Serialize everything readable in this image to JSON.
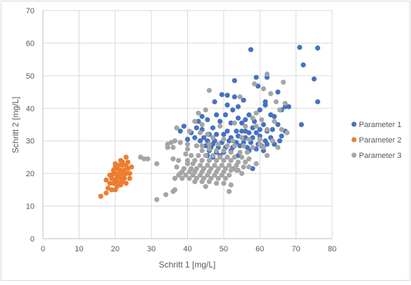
{
  "chart_data": {
    "type": "scatter",
    "xlabel": "Schritt 1 [mg/L]",
    "ylabel": "Schritt 2 [mg/L]",
    "xlim": [
      0,
      80
    ],
    "ylim": [
      0,
      70
    ],
    "xticks": [
      0,
      10,
      20,
      30,
      40,
      50,
      60,
      70,
      80
    ],
    "yticks": [
      0,
      10,
      20,
      30,
      40,
      50,
      60,
      70
    ],
    "grid": true,
    "legend_position": "right",
    "series": [
      {
        "name": "Parameter 1",
        "color": "#4472C4",
        "points": [
          [
            71,
            58.7
          ],
          [
            76,
            58.5
          ],
          [
            57.5,
            58
          ],
          [
            72,
            53.3
          ],
          [
            75,
            49
          ],
          [
            59,
            49.5
          ],
          [
            62,
            49.5
          ],
          [
            53,
            48.5
          ],
          [
            49.5,
            44.2
          ],
          [
            51,
            44
          ],
          [
            55.5,
            42.5
          ],
          [
            76,
            42
          ],
          [
            59.5,
            46.8
          ],
          [
            61.5,
            42
          ],
          [
            65,
            45
          ],
          [
            67,
            40.5
          ],
          [
            68,
            40.5
          ],
          [
            47.5,
            42
          ],
          [
            54,
            40.5
          ],
          [
            63,
            38
          ],
          [
            57,
            38
          ],
          [
            44,
            37.5
          ],
          [
            48,
            38
          ],
          [
            50.5,
            38
          ],
          [
            52.5,
            39.5
          ],
          [
            60,
            39.5
          ],
          [
            66,
            39.5
          ],
          [
            61.5,
            41
          ],
          [
            45.5,
            36.5
          ],
          [
            49,
            36
          ],
          [
            52,
            35.5
          ],
          [
            55,
            35.5
          ],
          [
            58,
            34
          ],
          [
            61,
            35
          ],
          [
            64,
            37.5
          ],
          [
            71.5,
            35
          ],
          [
            39,
            34.5
          ],
          [
            42.5,
            34
          ],
          [
            44,
            33.5
          ],
          [
            47,
            34
          ],
          [
            51,
            33
          ],
          [
            53.5,
            33
          ],
          [
            55,
            33
          ],
          [
            57,
            32.5
          ],
          [
            59,
            32.5
          ],
          [
            62,
            33
          ],
          [
            65,
            35
          ],
          [
            67,
            33
          ],
          [
            38,
            33
          ],
          [
            41,
            32.5
          ],
          [
            44.5,
            31
          ],
          [
            46,
            32
          ],
          [
            48,
            32
          ],
          [
            50,
            32
          ],
          [
            52,
            31
          ],
          [
            54,
            31.5
          ],
          [
            56,
            31
          ],
          [
            58,
            31
          ],
          [
            60,
            31.5
          ],
          [
            61.5,
            30
          ],
          [
            63,
            31
          ],
          [
            40,
            30.5
          ],
          [
            42,
            31
          ],
          [
            43.5,
            30
          ],
          [
            45.5,
            30
          ],
          [
            47.5,
            30
          ],
          [
            49.5,
            29.5
          ],
          [
            51.5,
            30
          ],
          [
            53.5,
            29.5
          ],
          [
            55.5,
            29.5
          ],
          [
            57.5,
            29.5
          ],
          [
            59.5,
            29
          ],
          [
            60.5,
            28.5
          ],
          [
            62,
            29
          ],
          [
            64,
            29
          ],
          [
            45,
            28.5
          ],
          [
            46.5,
            28
          ],
          [
            48.5,
            28
          ],
          [
            50.5,
            28
          ],
          [
            52.5,
            28
          ],
          [
            54.5,
            28.5
          ],
          [
            56.5,
            28
          ],
          [
            46,
            27
          ],
          [
            48,
            26.5
          ],
          [
            50,
            26.5
          ],
          [
            52,
            27
          ],
          [
            57,
            27
          ],
          [
            59,
            27.5
          ],
          [
            61,
            27
          ],
          [
            45.5,
            25.5
          ],
          [
            47,
            25
          ],
          [
            49,
            25.5
          ],
          [
            54,
            25.5
          ],
          [
            58,
            21.5
          ],
          [
            65.5,
            30
          ],
          [
            66,
            31.5
          ],
          [
            60,
            33.5
          ],
          [
            43,
            36
          ],
          [
            47,
            29
          ],
          [
            56,
            36.5
          ],
          [
            58.5,
            36
          ],
          [
            54,
            37
          ],
          [
            51,
            41
          ],
          [
            53,
            43.5
          ],
          [
            63.5,
            33.5
          ],
          [
            56,
            33
          ]
        ]
      },
      {
        "name": "Parameter 2",
        "color": "#ED7D31",
        "points": [
          [
            16,
            13
          ],
          [
            17.5,
            14
          ],
          [
            18,
            15.5
          ],
          [
            19,
            15
          ],
          [
            20,
            15
          ],
          [
            20.5,
            16
          ],
          [
            18.5,
            17
          ],
          [
            19.5,
            17
          ],
          [
            20,
            18
          ],
          [
            21,
            17
          ],
          [
            22,
            17.5
          ],
          [
            23,
            17
          ],
          [
            19,
            18.5
          ],
          [
            20.5,
            19
          ],
          [
            21.5,
            18.5
          ],
          [
            22.5,
            18.5
          ],
          [
            17.5,
            18
          ],
          [
            18.5,
            19.5
          ],
          [
            20,
            20
          ],
          [
            21,
            20
          ],
          [
            22,
            20
          ],
          [
            23,
            20
          ],
          [
            24,
            20
          ],
          [
            19.5,
            21
          ],
          [
            20.5,
            21.5
          ],
          [
            21.5,
            21
          ],
          [
            22.5,
            21
          ],
          [
            23.5,
            21.5
          ],
          [
            20,
            22
          ],
          [
            21,
            22.5
          ],
          [
            22,
            22.5
          ],
          [
            23,
            22.5
          ],
          [
            24.5,
            22
          ],
          [
            20,
            23
          ],
          [
            22,
            23.5
          ],
          [
            23,
            25
          ],
          [
            21.5,
            24
          ],
          [
            19,
            19.5
          ],
          [
            20.5,
            17.5
          ],
          [
            21.5,
            16.5
          ],
          [
            22.5,
            19.5
          ],
          [
            24,
            18.5
          ],
          [
            19.5,
            20
          ],
          [
            21,
            19.5
          ],
          [
            23.5,
            23.5
          ]
        ]
      },
      {
        "name": "Parameter 3",
        "color": "#A5A5A5",
        "points": [
          [
            62,
            50.5
          ],
          [
            58.5,
            47.5
          ],
          [
            61,
            46
          ],
          [
            66.5,
            48
          ],
          [
            63,
            44.5
          ],
          [
            46,
            45.5
          ],
          [
            54.5,
            43.5
          ],
          [
            64.5,
            42
          ],
          [
            67,
            41.5
          ],
          [
            43,
            38.5
          ],
          [
            45,
            39.5
          ],
          [
            59,
            38.5
          ],
          [
            65.5,
            39.5
          ],
          [
            58,
            37
          ],
          [
            60.5,
            36.5
          ],
          [
            64,
            36
          ],
          [
            42,
            36
          ],
          [
            44,
            35
          ],
          [
            49,
            34.5
          ],
          [
            53,
            35.5
          ],
          [
            56,
            34.5
          ],
          [
            59,
            34.5
          ],
          [
            62,
            33.5
          ],
          [
            66,
            33.5
          ],
          [
            37,
            34
          ],
          [
            40.5,
            33
          ],
          [
            43.5,
            32.5
          ],
          [
            45.5,
            32
          ],
          [
            47,
            31
          ],
          [
            50,
            30.5
          ],
          [
            52.5,
            30
          ],
          [
            55,
            31
          ],
          [
            57,
            30.5
          ],
          [
            60,
            30.5
          ],
          [
            63.5,
            30
          ],
          [
            67.5,
            32.5
          ],
          [
            34.5,
            29
          ],
          [
            35.5,
            29.5
          ],
          [
            36.5,
            30
          ],
          [
            38,
            29.5
          ],
          [
            40,
            29
          ],
          [
            42.5,
            28.5
          ],
          [
            44,
            28.5
          ],
          [
            46,
            29
          ],
          [
            48.5,
            29
          ],
          [
            51,
            28.5
          ],
          [
            53,
            28.5
          ],
          [
            55.5,
            28.5
          ],
          [
            58,
            28
          ],
          [
            61,
            28
          ],
          [
            34.5,
            28
          ],
          [
            36,
            28
          ],
          [
            40,
            27.5
          ],
          [
            44,
            27
          ],
          [
            46,
            27.5
          ],
          [
            48,
            27
          ],
          [
            50,
            27
          ],
          [
            52,
            26.5
          ],
          [
            54.5,
            26.5
          ],
          [
            56.5,
            26.5
          ],
          [
            39.5,
            26
          ],
          [
            41,
            25.5
          ],
          [
            43,
            25.5
          ],
          [
            45,
            25.5
          ],
          [
            47,
            25.5
          ],
          [
            49,
            25
          ],
          [
            51,
            25
          ],
          [
            53,
            25
          ],
          [
            55,
            25
          ],
          [
            57,
            24.5
          ],
          [
            36,
            24.5
          ],
          [
            37.5,
            24
          ],
          [
            40,
            24
          ],
          [
            42,
            24
          ],
          [
            44,
            24
          ],
          [
            46,
            24
          ],
          [
            48,
            24
          ],
          [
            50,
            24
          ],
          [
            52,
            24
          ],
          [
            54,
            23.5
          ],
          [
            56,
            23.5
          ],
          [
            40,
            23
          ],
          [
            41.5,
            23
          ],
          [
            43.5,
            22.5
          ],
          [
            45.5,
            22.5
          ],
          [
            47.5,
            22.5
          ],
          [
            49.5,
            22.5
          ],
          [
            51.5,
            22.5
          ],
          [
            53.5,
            22.5
          ],
          [
            55.5,
            22
          ],
          [
            39,
            21.5
          ],
          [
            41,
            21.5
          ],
          [
            42.5,
            21.5
          ],
          [
            44.5,
            21.5
          ],
          [
            46.5,
            21.5
          ],
          [
            48.5,
            21.5
          ],
          [
            50.5,
            21.5
          ],
          [
            52.5,
            21.5
          ],
          [
            38.5,
            20.5
          ],
          [
            40.5,
            20.5
          ],
          [
            42,
            20.5
          ],
          [
            44,
            20.5
          ],
          [
            46,
            20.5
          ],
          [
            48,
            20.5
          ],
          [
            50,
            20.5
          ],
          [
            52,
            21
          ],
          [
            54,
            21
          ],
          [
            37.5,
            19.5
          ],
          [
            39.5,
            19.5
          ],
          [
            41.5,
            19.5
          ],
          [
            43.5,
            19.5
          ],
          [
            45.5,
            19.5
          ],
          [
            47.5,
            19.5
          ],
          [
            49.5,
            19.5
          ],
          [
            51.5,
            19.5
          ],
          [
            36.5,
            18.5
          ],
          [
            38.5,
            18.5
          ],
          [
            40.5,
            18.5
          ],
          [
            42.5,
            18.5
          ],
          [
            44.5,
            18.5
          ],
          [
            46.5,
            18.5
          ],
          [
            48.5,
            18.5
          ],
          [
            50.5,
            18.5
          ],
          [
            42,
            17.5
          ],
          [
            44,
            17.5
          ],
          [
            46,
            17.5
          ],
          [
            48,
            17
          ],
          [
            50,
            17
          ],
          [
            52,
            16.5
          ],
          [
            36.5,
            15
          ],
          [
            36,
            14.5
          ],
          [
            51.5,
            14.5
          ],
          [
            34,
            13.5
          ],
          [
            31.5,
            12
          ],
          [
            27,
            25
          ],
          [
            28,
            24.5
          ],
          [
            29,
            24.5
          ],
          [
            31.5,
            23
          ],
          [
            62,
            25.5
          ],
          [
            65,
            28
          ],
          [
            60,
            29
          ],
          [
            53.5,
            21
          ],
          [
            55,
            20
          ],
          [
            57,
            22
          ],
          [
            59,
            23
          ],
          [
            38,
            20
          ],
          [
            37,
            22
          ],
          [
            45,
            16
          ]
        ]
      }
    ]
  }
}
